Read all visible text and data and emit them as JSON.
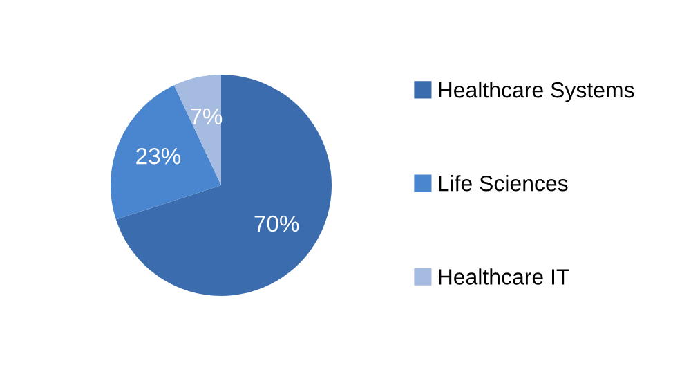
{
  "chart_data": {
    "type": "pie",
    "categories": [
      "Healthcare Systems",
      "Life Sciences",
      "Healthcare IT"
    ],
    "values": [
      70,
      23,
      7
    ],
    "value_labels": [
      "70%",
      "23%",
      "7%"
    ],
    "colors": [
      "#3b6cad",
      "#4a86cf",
      "#a6bbe0"
    ],
    "legend": "right"
  }
}
